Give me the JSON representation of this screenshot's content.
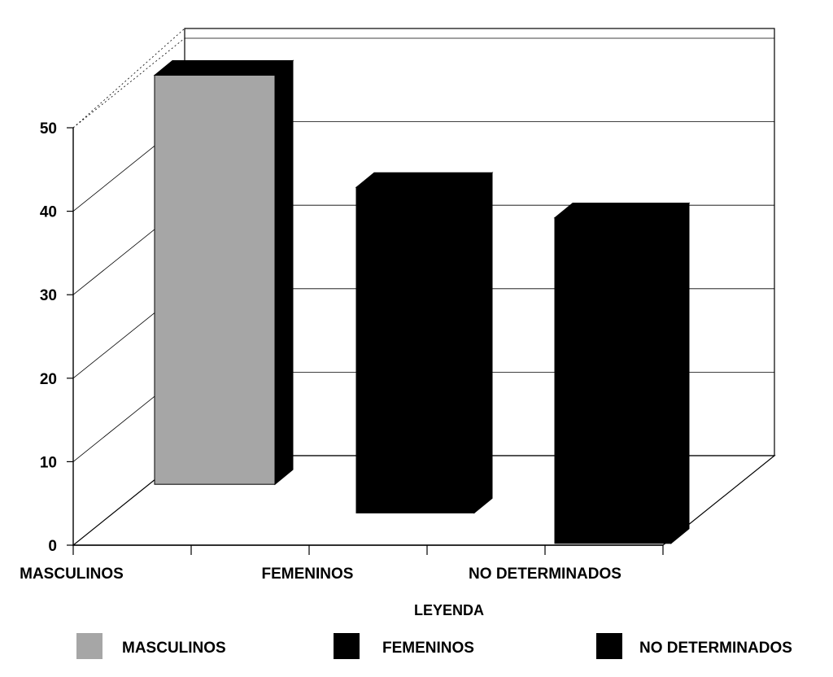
{
  "chart_data": {
    "type": "bar",
    "style": "3d",
    "categories": [
      "MASCULINOS",
      "FEMENINOS",
      "NO DETERMINADOS"
    ],
    "values": [
      49,
      39,
      39
    ],
    "colors": [
      "#a6a6a6",
      "#000000",
      "#000000"
    ],
    "ylim": [
      0,
      50
    ],
    "yticks": [
      0,
      10,
      20,
      30,
      40,
      50
    ],
    "grid": true,
    "legend": {
      "title": "LEYENDA",
      "position": "bottom",
      "items": [
        {
          "label": "MASCULINOS",
          "color": "#a6a6a6"
        },
        {
          "label": "FEMENINOS",
          "color": "#000000"
        },
        {
          "label": "NO DETERMINADOS",
          "color": "#000000"
        }
      ]
    }
  }
}
